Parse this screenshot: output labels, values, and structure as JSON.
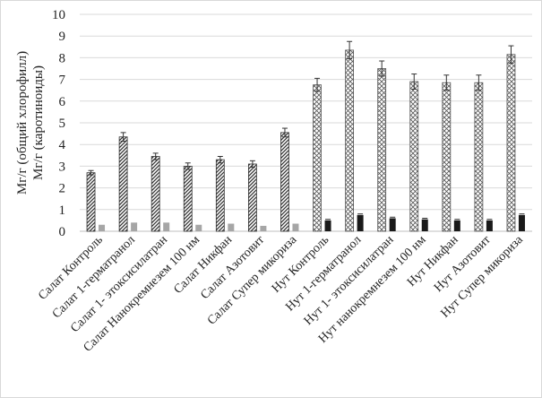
{
  "chart_data": {
    "type": "bar",
    "ylabel": [
      "Мг/г (общий хлорофилл)",
      "Мг/г (каротиноиды)"
    ],
    "ylim": [
      0,
      10
    ],
    "yticks": [
      "0",
      "1",
      "2",
      "3",
      "4",
      "5",
      "6",
      "7",
      "8",
      "9",
      "10"
    ],
    "grid": true,
    "categories": [
      "Салат Контроль",
      "Салат 1-герматранол",
      "Салат 1- этоксисилатран",
      "Салат Нанокремнезем 100 нм",
      "Салат Никфан",
      "Салат Азотовит",
      "Салат Супер микориза",
      "Нут Контроль",
      "Нут 1-герматранол",
      "Нут 1- этоксисилатран",
      "Нут нанокремнезем 100 нм",
      "Нут Никфан",
      "Нут Азотовит",
      "Нут Супер микориза"
    ],
    "series": [
      {
        "values": [
          2.7,
          4.35,
          3.45,
          3.0,
          3.3,
          3.1,
          4.55,
          6.75,
          8.35,
          7.5,
          6.9,
          6.85,
          6.85,
          8.15
        ],
        "errors": [
          0.1,
          0.2,
          0.15,
          0.15,
          0.15,
          0.15,
          0.2,
          0.3,
          0.4,
          0.35,
          0.35,
          0.35,
          0.35,
          0.4
        ]
      },
      {
        "values": [
          0.3,
          0.4,
          0.4,
          0.3,
          0.35,
          0.25,
          0.35,
          0.5,
          0.75,
          0.6,
          0.55,
          0.5,
          0.5,
          0.75
        ],
        "errors": [
          0.0,
          0.0,
          0.0,
          0.0,
          0.0,
          0.0,
          0.0,
          0.05,
          0.05,
          0.05,
          0.05,
          0.05,
          0.05,
          0.05
        ]
      }
    ],
    "colors": {
      "salad_main": "#333333",
      "salad_secondary": "#a6a6a6",
      "chickpea_main": "#555555",
      "chickpea_secondary": "#1a1a1a",
      "grid": "#d9d9d9",
      "axis": "#bfbfbf"
    }
  }
}
